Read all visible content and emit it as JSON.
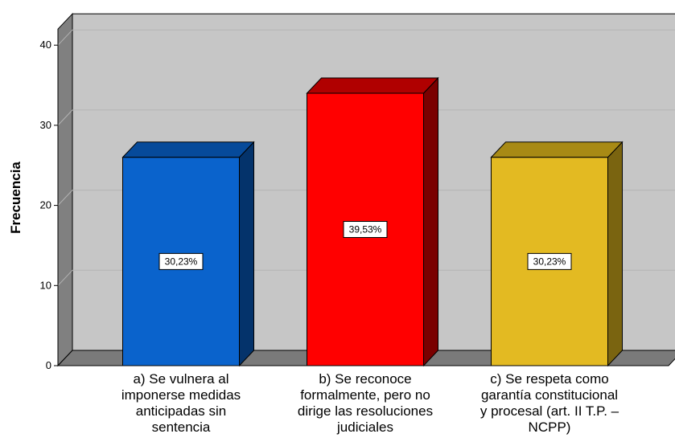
{
  "chart_data": {
    "type": "bar",
    "ylabel": "Frecuencia",
    "ylim": [
      0,
      40
    ],
    "yticks": [
      0,
      10,
      20,
      30,
      40
    ],
    "grid": true,
    "categories": [
      [
        "a) Se vulnera al",
        "imponerse medidas",
        "anticipadas sin",
        "sentencia"
      ],
      [
        "b) Se reconoce",
        "formalmente, pero no",
        "dirige las resoluciones",
        "judiciales"
      ],
      [
        "c) Se respeta como",
        "garantía constitucional",
        "y procesal (art. II T.P. –",
        "NCPP)"
      ]
    ],
    "values": [
      26,
      34,
      26
    ],
    "data_labels": [
      "30,23%",
      "39,53%",
      "30,23%"
    ],
    "colors": {
      "front": [
        "#0a63cc",
        "#ff0000",
        "#e3ba22"
      ],
      "top": [
        "#064a9a",
        "#b00000",
        "#a88a15"
      ],
      "side": [
        "#04336b",
        "#7a0000",
        "#7a6410"
      ],
      "wall": "#c6c6c6",
      "wall_left": "#808080",
      "floor": "#7a7a7a",
      "grid": "#b4b4b4"
    }
  }
}
